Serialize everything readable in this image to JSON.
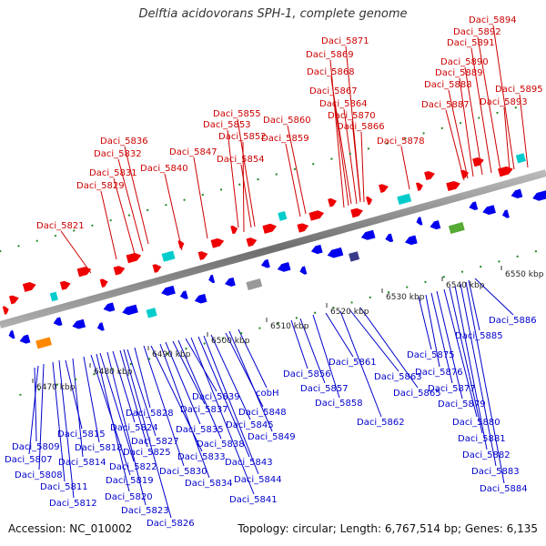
{
  "title": "Delftia acidovorans SPH-1, complete genome",
  "accession": "Accession: NC_010002",
  "topology": "Topology: circular; Length: 6,767,514 bp; Genes: 6,135",
  "colors": {
    "forward_label": "#cc0000",
    "reverse_label": "#0000cc",
    "forward_gene": "#ee0000",
    "reverse_gene": "#0000ee",
    "backbone": "#888888",
    "tick_marks": "#228822"
  },
  "scale_ticks": [
    {
      "label": "6470 kbp"
    },
    {
      "label": "6480 kbp"
    },
    {
      "label": "6490 kbp"
    },
    {
      "label": "6500 kbp"
    },
    {
      "label": "6510 kbp"
    },
    {
      "label": "6520 kbp"
    },
    {
      "label": "6530 kbp"
    },
    {
      "label": "6540 kbp"
    },
    {
      "label": "6550 kbp"
    }
  ],
  "forward_genes": [
    {
      "name": "Daci_5821"
    },
    {
      "name": "Daci_5829"
    },
    {
      "name": "Daci_5831"
    },
    {
      "name": "Daci_5832"
    },
    {
      "name": "Daci_5836"
    },
    {
      "name": "Daci_5840"
    },
    {
      "name": "Daci_5847"
    },
    {
      "name": "Daci_5852"
    },
    {
      "name": "Daci_5853"
    },
    {
      "name": "Daci_5854"
    },
    {
      "name": "Daci_5855"
    },
    {
      "name": "Daci_5859"
    },
    {
      "name": "Daci_5860"
    },
    {
      "name": "Daci_5864"
    },
    {
      "name": "Daci_5866"
    },
    {
      "name": "Daci_5867"
    },
    {
      "name": "Daci_5868"
    },
    {
      "name": "Daci_5869"
    },
    {
      "name": "Daci_5870"
    },
    {
      "name": "Daci_5871"
    },
    {
      "name": "Daci_5878"
    },
    {
      "name": "Daci_5887"
    },
    {
      "name": "Daci_5888"
    },
    {
      "name": "Daci_5889"
    },
    {
      "name": "Daci_5890"
    },
    {
      "name": "Daci_5891"
    },
    {
      "name": "Daci_5892"
    },
    {
      "name": "Daci_5893"
    },
    {
      "name": "Daci_5894"
    },
    {
      "name": "Daci_5895"
    }
  ],
  "reverse_genes": [
    {
      "name": "Daci_5807"
    },
    {
      "name": "Daci_5808"
    },
    {
      "name": "Daci_5809"
    },
    {
      "name": "Daci_5811"
    },
    {
      "name": "Daci_5812"
    },
    {
      "name": "Daci_5814"
    },
    {
      "name": "Daci_5815"
    },
    {
      "name": "Daci_5818"
    },
    {
      "name": "Daci_5819"
    },
    {
      "name": "Daci_5820"
    },
    {
      "name": "Daci_5822"
    },
    {
      "name": "Daci_5823"
    },
    {
      "name": "Daci_5824"
    },
    {
      "name": "Daci_5825"
    },
    {
      "name": "Daci_5826"
    },
    {
      "name": "Daci_5827"
    },
    {
      "name": "Daci_5828"
    },
    {
      "name": "Daci_5830"
    },
    {
      "name": "Daci_5833"
    },
    {
      "name": "Daci_5834"
    },
    {
      "name": "Daci_5835"
    },
    {
      "name": "Daci_5837"
    },
    {
      "name": "Daci_5838"
    },
    {
      "name": "Daci_5839"
    },
    {
      "name": "Daci_5841"
    },
    {
      "name": "Daci_5843"
    },
    {
      "name": "Daci_5844"
    },
    {
      "name": "Daci_5845"
    },
    {
      "name": "Daci_5848"
    },
    {
      "name": "Daci_5849"
    },
    {
      "name": "cobH"
    },
    {
      "name": "Daci_5856"
    },
    {
      "name": "Daci_5857"
    },
    {
      "name": "Daci_5858"
    },
    {
      "name": "Daci_5861"
    },
    {
      "name": "Daci_5862"
    },
    {
      "name": "Daci_5863"
    },
    {
      "name": "Daci_5865"
    },
    {
      "name": "Daci_5875"
    },
    {
      "name": "Daci_5876"
    },
    {
      "name": "Daci_5877"
    },
    {
      "name": "Daci_5879"
    },
    {
      "name": "Daci_5880"
    },
    {
      "name": "Daci_5881"
    },
    {
      "name": "Daci_5882"
    },
    {
      "name": "Daci_5883"
    },
    {
      "name": "Daci_5884"
    },
    {
      "name": "Daci_5885"
    },
    {
      "name": "Daci_5886"
    }
  ]
}
